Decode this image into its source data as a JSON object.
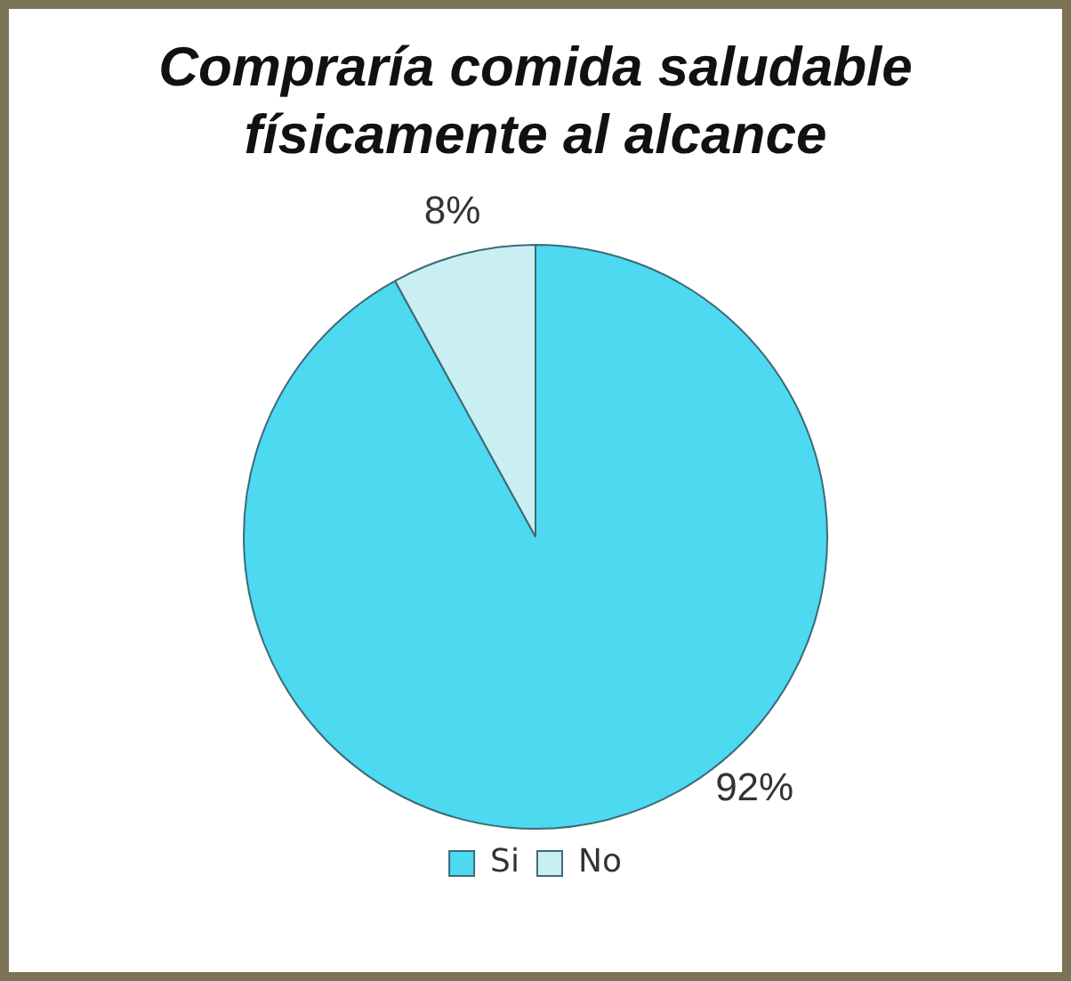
{
  "chart_data": {
    "type": "pie",
    "title": "Compraría comida saludable físicamente al alcance",
    "categories": [
      "Si",
      "No"
    ],
    "values": [
      92,
      8
    ],
    "colors": [
      "#4dd9f0",
      "#c9eff3"
    ],
    "value_labels": [
      "92%",
      "8%"
    ],
    "legend": "bottom"
  }
}
